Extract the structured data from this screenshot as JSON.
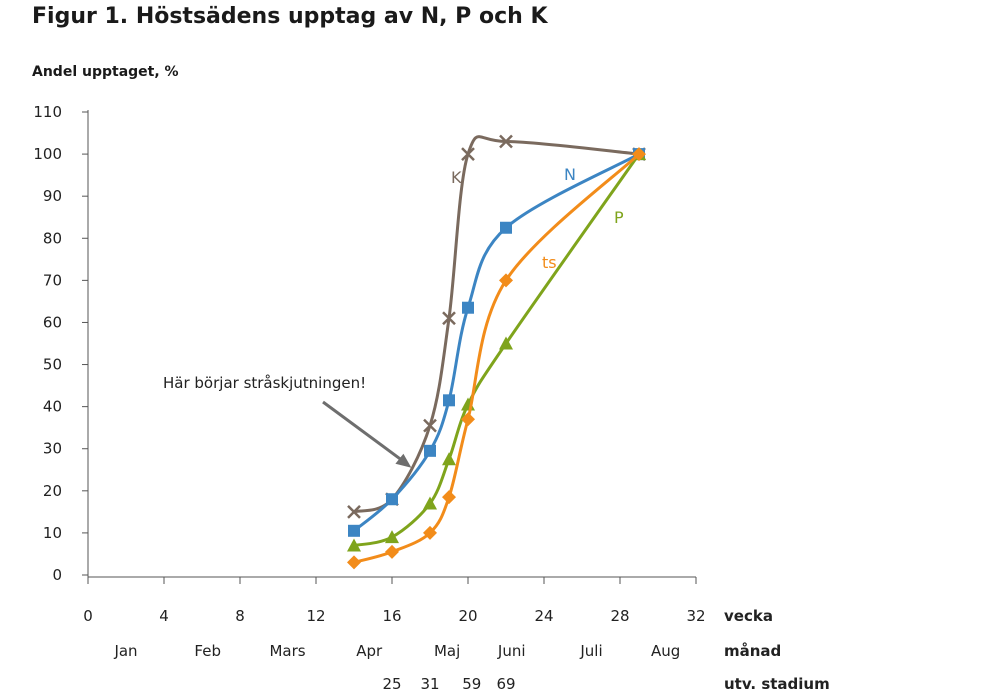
{
  "chart_data": {
    "type": "line",
    "title": "Figur 1. Höstsädens upptag av N, P och K",
    "ylabel": "Andel upptaget, %",
    "xlabel": "vecka",
    "xlim": [
      0,
      32
    ],
    "ylim": [
      0,
      110
    ],
    "xticks": [
      0,
      4,
      8,
      12,
      16,
      20,
      24,
      28,
      32
    ],
    "yticks": [
      0,
      10,
      20,
      30,
      40,
      50,
      60,
      70,
      80,
      90,
      100,
      110
    ],
    "grid": false,
    "legend": "none; series labeled inline",
    "month_row_label": "månad",
    "months": [
      {
        "label": "Jan",
        "week": 2
      },
      {
        "label": "Feb",
        "week": 6.3
      },
      {
        "label": "Mars",
        "week": 10.5
      },
      {
        "label": "Apr",
        "week": 14.8
      },
      {
        "label": "Maj",
        "week": 18.9
      },
      {
        "label": "Juni",
        "week": 22.3
      },
      {
        "label": "Juli",
        "week": 26.5
      },
      {
        "label": "Aug",
        "week": 30.4
      }
    ],
    "stage_row_label": "utv. stadium",
    "stages": [
      {
        "label": "25",
        "week": 16
      },
      {
        "label": "31",
        "week": 18
      },
      {
        "label": "59",
        "week": 20.2
      },
      {
        "label": "69",
        "week": 22
      }
    ],
    "annotation": {
      "text": "Här börjar stråskjutningen!",
      "points_to": [
        16.6,
        25
      ]
    },
    "series": [
      {
        "name": "K",
        "color": "#7a6a5e",
        "marker": "x",
        "x": [
          14,
          16,
          18,
          19,
          20,
          22,
          29
        ],
        "y": [
          15,
          18,
          35.5,
          61,
          100,
          103,
          100
        ]
      },
      {
        "name": "N",
        "color": "#3c85c3",
        "marker": "square",
        "x": [
          14,
          16,
          18,
          19,
          20,
          22,
          29
        ],
        "y": [
          10.5,
          18,
          29.5,
          41.5,
          63.5,
          82.5,
          100
        ]
      },
      {
        "name": "P",
        "color": "#7fa41c",
        "marker": "triangle",
        "x": [
          14,
          16,
          18,
          19,
          20,
          22,
          29
        ],
        "y": [
          7,
          9,
          17,
          27.5,
          40.5,
          55,
          100
        ]
      },
      {
        "name": "ts",
        "color": "#f28c1a",
        "marker": "diamond",
        "x": [
          14,
          16,
          18,
          19,
          20,
          22,
          29
        ],
        "y": [
          3,
          5.5,
          10,
          18.5,
          37,
          70,
          100
        ]
      }
    ]
  }
}
